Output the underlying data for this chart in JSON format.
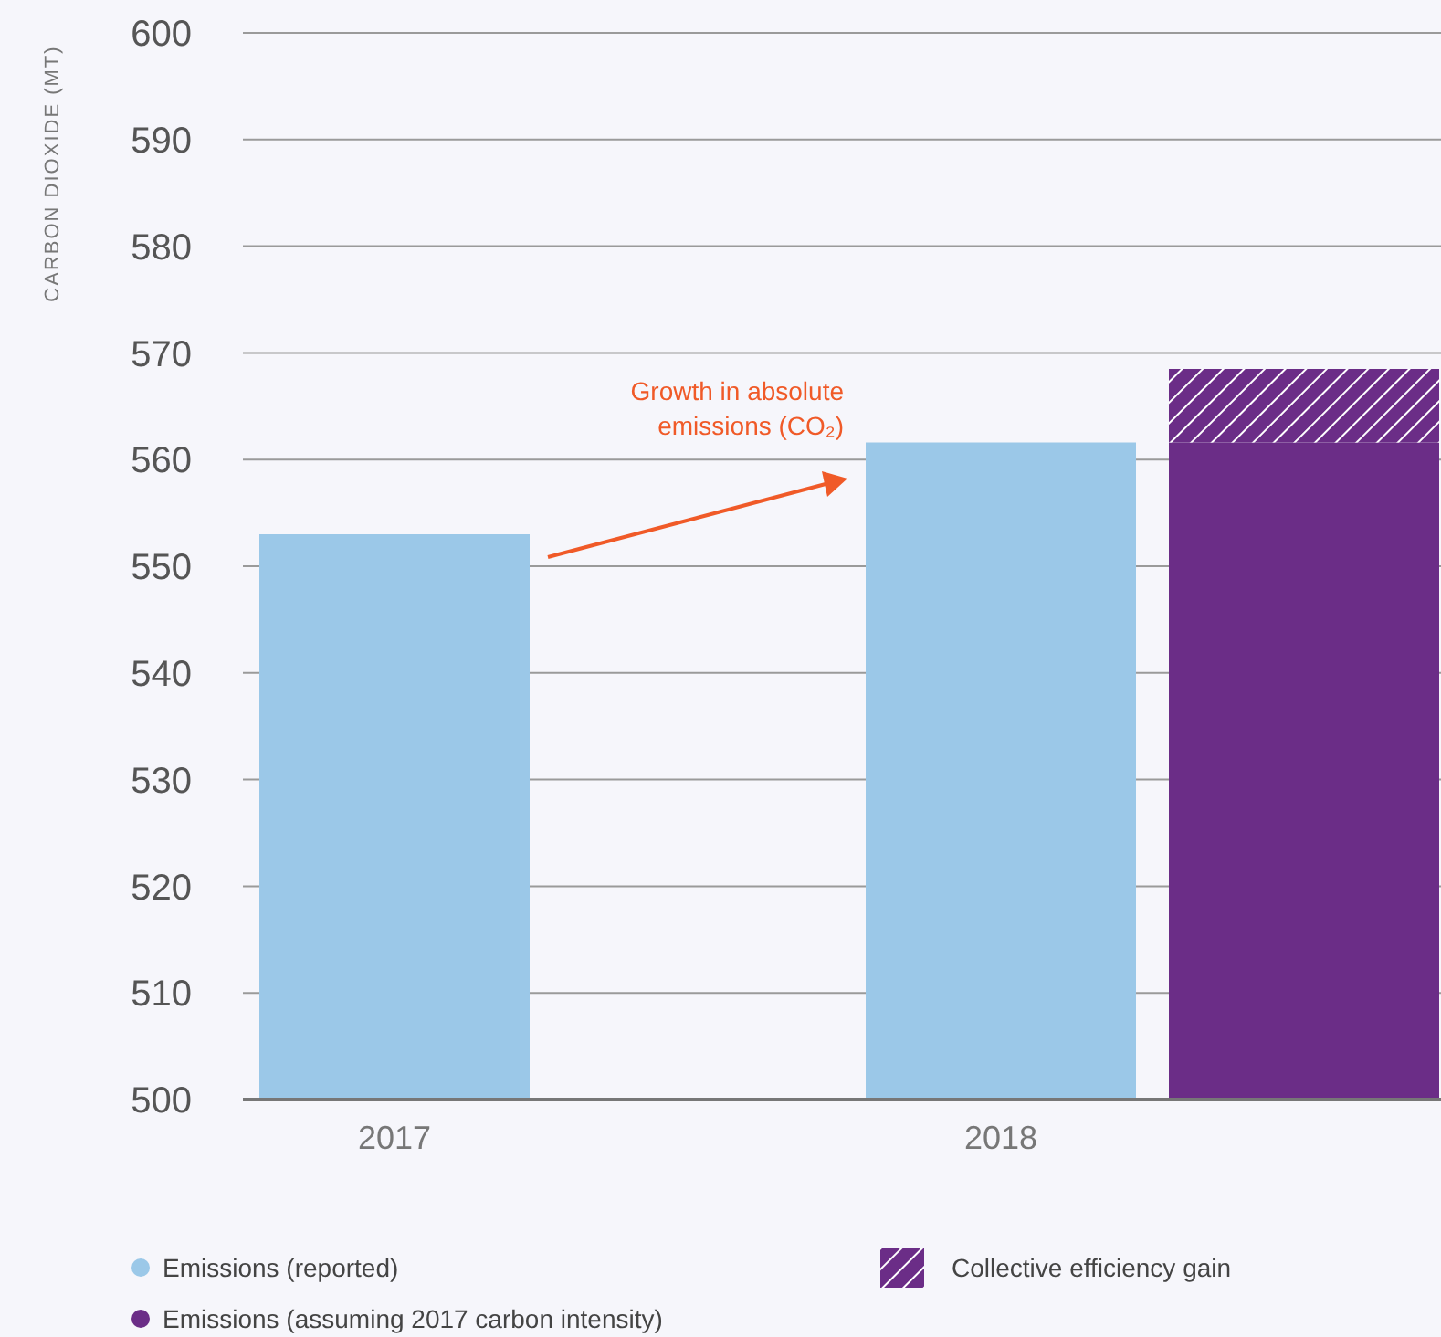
{
  "chart_data": {
    "type": "bar",
    "ylabel": "CARBON DIOXIDE (MT)",
    "categories": [
      "2017",
      null,
      "2018",
      null
    ],
    "stacked": true,
    "series": [
      {
        "name": "Emissions (reported)",
        "color": "#9bc8e8",
        "values": [
          553,
          null,
          561.6,
          null
        ]
      },
      {
        "name": "Emissions (assuming 2017 carbon intensity)",
        "color": "#6b2d87",
        "values": [
          null,
          null,
          null,
          561.6
        ]
      },
      {
        "name": "Collective efficiency gain",
        "color": "#6b2d87",
        "values": [
          null,
          null,
          null,
          6.9
        ],
        "base": [
          null,
          null,
          null,
          561.6
        ]
      }
    ],
    "ylim": [
      500,
      600
    ],
    "yticks": [
      500,
      510,
      520,
      530,
      540,
      550,
      560,
      570,
      580,
      590,
      600
    ],
    "grid": "y",
    "legend": "bottom",
    "annotations": [
      "Growth in absolute\nemissions (CO₂)"
    ]
  }
}
